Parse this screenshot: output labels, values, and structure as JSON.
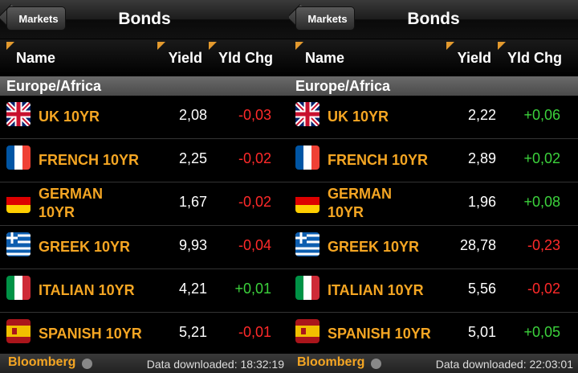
{
  "panels": [
    {
      "back": "Markets",
      "title": "Bonds",
      "columns": [
        "Name",
        "Yield",
        "Yld Chg"
      ],
      "section": "Europe/Africa",
      "rows": [
        {
          "name": "UK 10YR",
          "yield": "2,08",
          "change": "-0,03"
        },
        {
          "name": "FRENCH 10YR",
          "yield": "2,25",
          "change": "-0,02"
        },
        {
          "name": "GERMAN 10YR",
          "yield": "1,67",
          "change": "-0,02"
        },
        {
          "name": "GREEK 10YR",
          "yield": "9,93",
          "change": "-0,04"
        },
        {
          "name": "ITALIAN 10YR",
          "yield": "4,21",
          "change": "+0,01"
        },
        {
          "name": "SPANISH 10YR",
          "yield": "5,21",
          "change": "-0,01"
        }
      ],
      "footer": {
        "brand": "Bloomberg",
        "status": "Data downloaded: 18:32:19"
      }
    },
    {
      "back": "Markets",
      "title": "Bonds",
      "columns": [
        "Name",
        "Yield",
        "Yld Chg"
      ],
      "section": "Europe/Africa",
      "rows": [
        {
          "name": "UK 10YR",
          "yield": "2,22",
          "change": "+0,06"
        },
        {
          "name": "FRENCH 10YR",
          "yield": "2,89",
          "change": "+0,02"
        },
        {
          "name": "GERMAN 10YR",
          "yield": "1,96",
          "change": "+0,08"
        },
        {
          "name": "GREEK 10YR",
          "yield": "28,78",
          "change": "-0,23"
        },
        {
          "name": "ITALIAN 10YR",
          "yield": "5,56",
          "change": "-0,02"
        },
        {
          "name": "SPANISH 10YR",
          "yield": "5,01",
          "change": "+0,05"
        }
      ],
      "footer": {
        "brand": "Bloomberg",
        "status": "Data downloaded: 22:03:01"
      }
    }
  ]
}
